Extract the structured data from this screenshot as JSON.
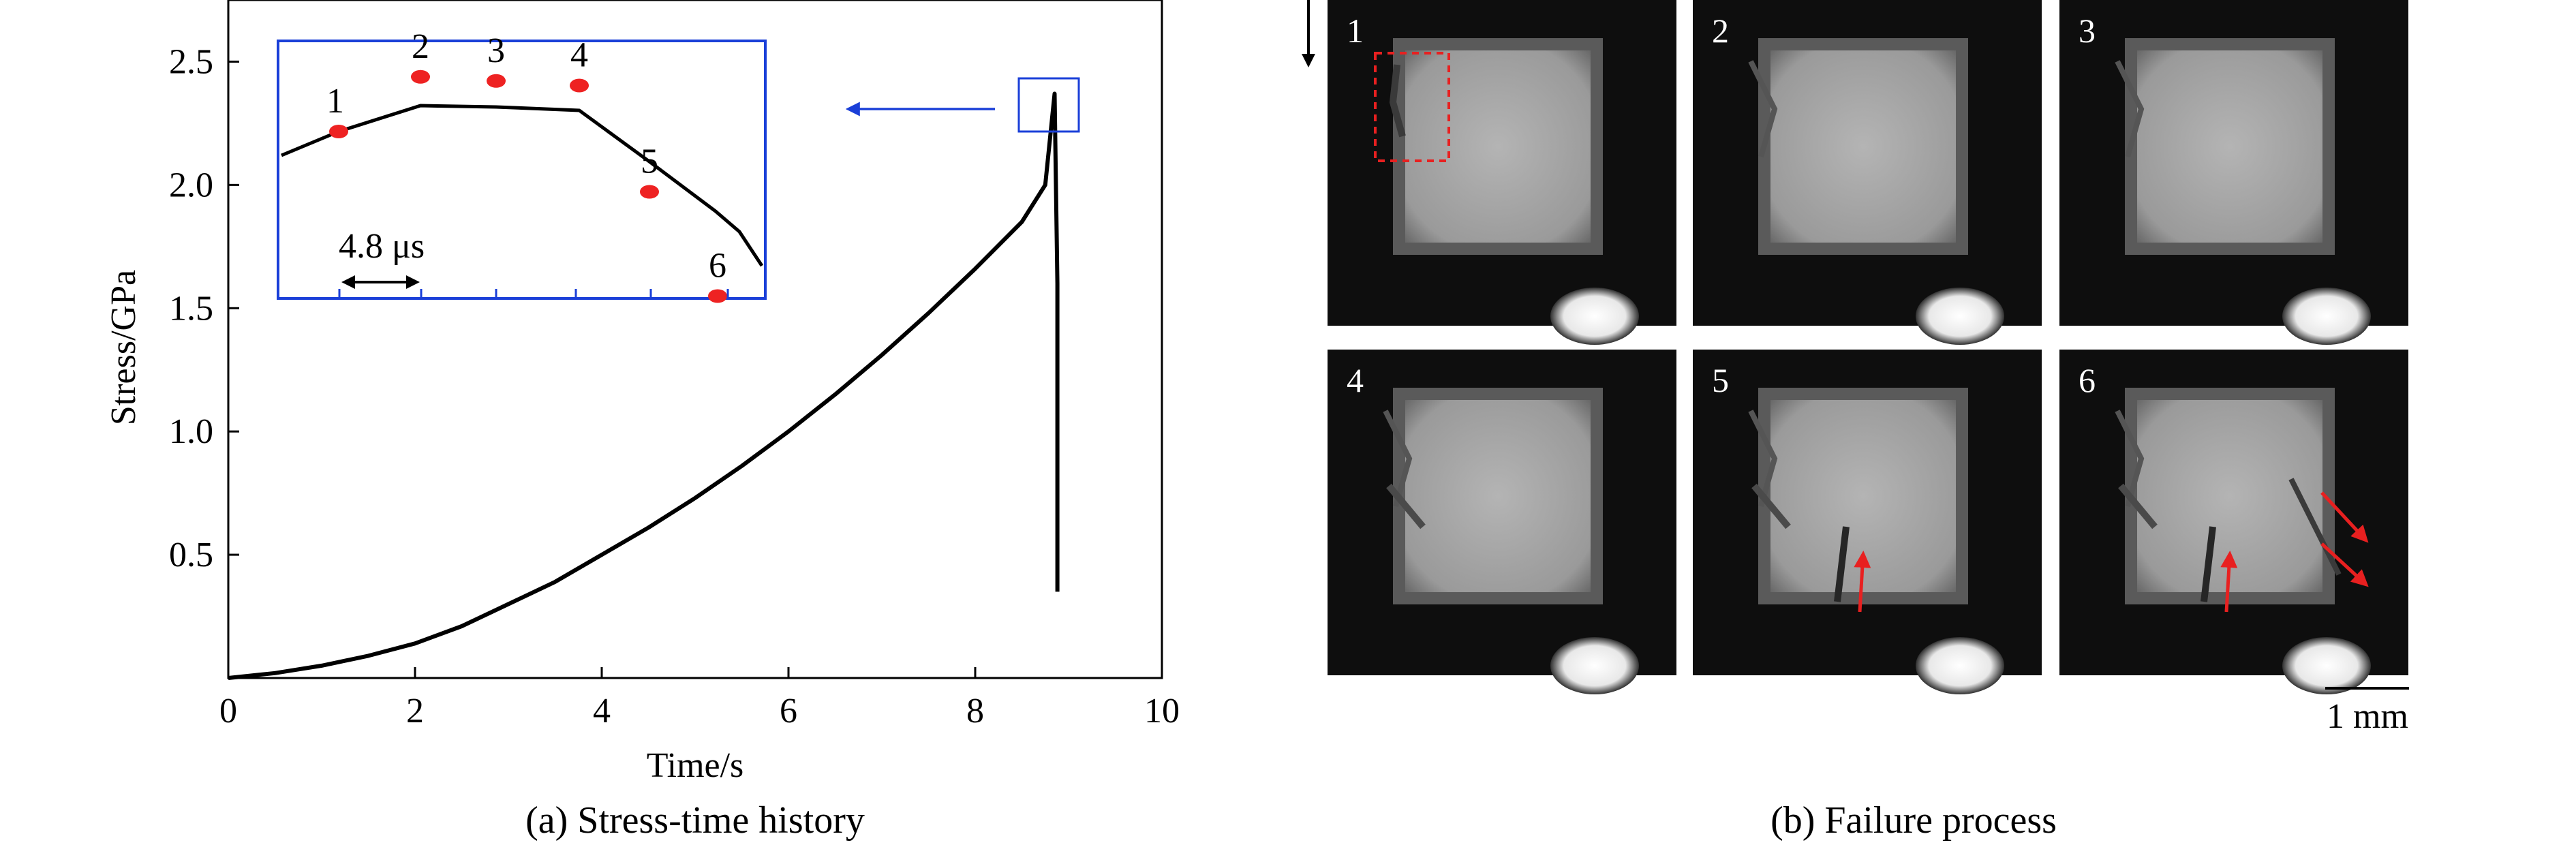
{
  "chart_data": {
    "type": "line",
    "xlabel": "Time/s",
    "ylabel": "Stress/GPa",
    "xlim": [
      0,
      10
    ],
    "ylim": [
      0,
      2.75
    ],
    "xticks": [
      "0",
      "2",
      "4",
      "6",
      "8",
      "10"
    ],
    "yticks": [
      "0.5",
      "1.0",
      "1.5",
      "2.0",
      "2.5"
    ],
    "grid": false,
    "series": [
      {
        "points": [
          [
            0,
            0
          ],
          [
            0.5,
            0.02
          ],
          [
            1.0,
            0.05
          ],
          [
            1.5,
            0.09
          ],
          [
            2.0,
            0.14
          ],
          [
            2.5,
            0.21
          ],
          [
            3.0,
            0.3
          ],
          [
            3.5,
            0.39
          ],
          [
            4.0,
            0.5
          ],
          [
            4.5,
            0.61
          ],
          [
            5.0,
            0.73
          ],
          [
            5.5,
            0.86
          ],
          [
            6.0,
            1.0
          ],
          [
            6.5,
            1.15
          ],
          [
            7.0,
            1.31
          ],
          [
            7.5,
            1.48
          ],
          [
            8.0,
            1.66
          ],
          [
            8.5,
            1.85
          ],
          [
            8.75,
            2.0
          ],
          [
            8.85,
            2.37
          ],
          [
            8.88,
            1.6
          ],
          [
            8.88,
            0.35
          ]
        ]
      }
    ],
    "inset": {
      "scale_label": "4.8 μs",
      "marker_color": "#ee2222",
      "frame_color": "#1a3fd8",
      "markers": [
        {
          "label": "1",
          "stress": 2.236
        },
        {
          "label": "2",
          "stress": 2.343
        },
        {
          "label": "3",
          "stress": 2.335
        },
        {
          "label": "4",
          "stress": 2.326
        },
        {
          "label": "5",
          "stress": 2.118
        },
        {
          "label": "6",
          "stress": 1.914
        }
      ]
    }
  },
  "captions": {
    "a": "(a) Stress-time history",
    "b": "(b) Failure process"
  },
  "frames": [
    {
      "label": "1"
    },
    {
      "label": "2"
    },
    {
      "label": "3"
    },
    {
      "label": "4"
    },
    {
      "label": "5"
    },
    {
      "label": "6"
    }
  ],
  "scale_bar": "1 mm",
  "colors": {
    "arrow_blue": "#1a3fd8",
    "arrow_red": "#e82020",
    "photo_bg": "#0e0e0e",
    "specimen": "#a8a8a8"
  }
}
